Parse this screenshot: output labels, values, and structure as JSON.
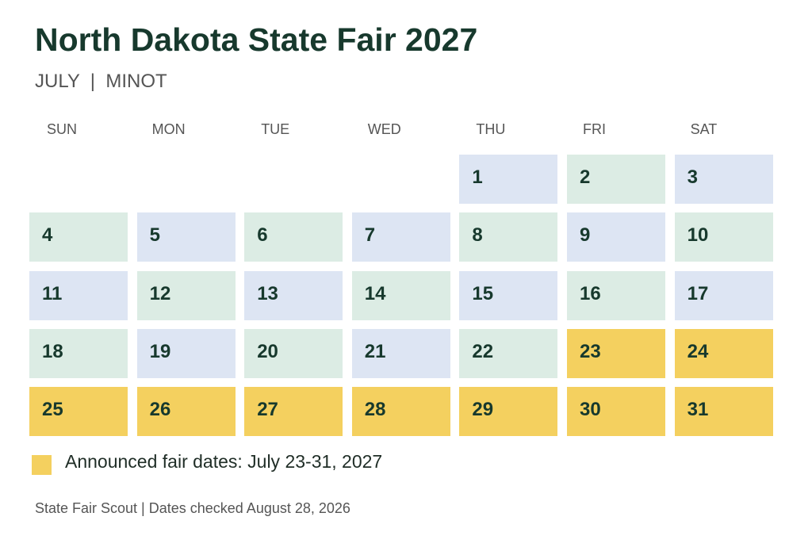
{
  "title": "North Dakota State Fair 2027",
  "subtitle": "JULY  |  MINOT",
  "weekdays": [
    "SUN",
    "MON",
    "TUE",
    "WED",
    "THU",
    "FRI",
    "SAT"
  ],
  "month_start_weekday": 4,
  "days": [
    {
      "day": "1",
      "style": "blue"
    },
    {
      "day": "2",
      "style": "green"
    },
    {
      "day": "3",
      "style": "blue"
    },
    {
      "day": "4",
      "style": "green"
    },
    {
      "day": "5",
      "style": "blue"
    },
    {
      "day": "6",
      "style": "green"
    },
    {
      "day": "7",
      "style": "blue"
    },
    {
      "day": "8",
      "style": "green"
    },
    {
      "day": "9",
      "style": "blue"
    },
    {
      "day": "10",
      "style": "green"
    },
    {
      "day": "11",
      "style": "blue"
    },
    {
      "day": "12",
      "style": "green"
    },
    {
      "day": "13",
      "style": "blue"
    },
    {
      "day": "14",
      "style": "green"
    },
    {
      "day": "15",
      "style": "blue"
    },
    {
      "day": "16",
      "style": "green"
    },
    {
      "day": "17",
      "style": "blue"
    },
    {
      "day": "18",
      "style": "green"
    },
    {
      "day": "19",
      "style": "blue"
    },
    {
      "day": "20",
      "style": "green"
    },
    {
      "day": "21",
      "style": "blue"
    },
    {
      "day": "22",
      "style": "green"
    },
    {
      "day": "23",
      "style": "fair"
    },
    {
      "day": "24",
      "style": "fair"
    },
    {
      "day": "25",
      "style": "fair"
    },
    {
      "day": "26",
      "style": "fair"
    },
    {
      "day": "27",
      "style": "fair"
    },
    {
      "day": "28",
      "style": "fair"
    },
    {
      "day": "29",
      "style": "fair"
    },
    {
      "day": "30",
      "style": "fair"
    },
    {
      "day": "31",
      "style": "fair"
    }
  ],
  "colors": {
    "blue": "#dde5f3",
    "green": "#dcece4",
    "fair": "#f4d05f",
    "title": "#17392d"
  },
  "legend": {
    "label": "Announced fair dates: July 23-31, 2027"
  },
  "footer": "State Fair Scout | Dates checked August 28, 2026"
}
